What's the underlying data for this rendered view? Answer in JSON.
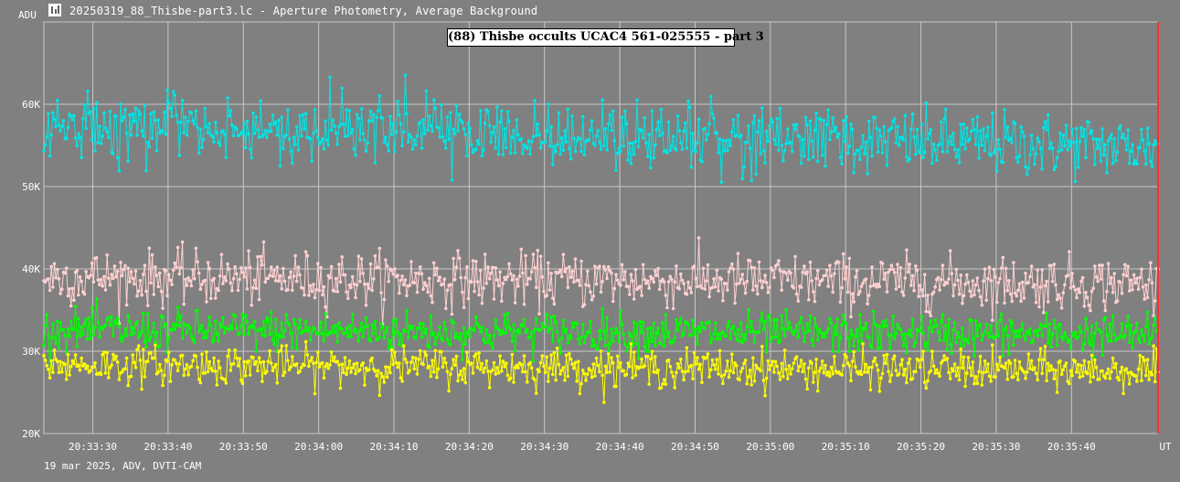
{
  "window": {
    "title": "20250319_88_Thisbe-part3.lc - Aperture Photometry, Average Background",
    "icon": "lightcurve-app-icon"
  },
  "footer": "19 mar 2025, ADV, DVTI-CAM",
  "chart_data": {
    "type": "line",
    "title": "(88) Thisbe occults UCAC4 561-025555 - part 3",
    "ylabel": "ADU",
    "xlabel": "UT",
    "ylim": [
      20000,
      70000
    ],
    "xlim": [
      "20:33:23.5",
      "20:35:51.5"
    ],
    "y_ticks": [
      {
        "value": 20000,
        "label": "20K"
      },
      {
        "value": 30000,
        "label": "30K"
      },
      {
        "value": 40000,
        "label": "40K"
      },
      {
        "value": 50000,
        "label": "50K"
      },
      {
        "value": 60000,
        "label": "60K"
      }
    ],
    "x_ticks": [
      {
        "value": "20:33:30",
        "label": "20:33:30"
      },
      {
        "value": "20:33:40",
        "label": "20:33:40"
      },
      {
        "value": "20:33:50",
        "label": "20:33:50"
      },
      {
        "value": "20:34:00",
        "label": "20:34:00"
      },
      {
        "value": "20:34:10",
        "label": "20:34:10"
      },
      {
        "value": "20:34:20",
        "label": "20:34:20"
      },
      {
        "value": "20:34:30",
        "label": "20:34:30"
      },
      {
        "value": "20:34:40",
        "label": "20:34:40"
      },
      {
        "value": "20:34:50",
        "label": "20:34:50"
      },
      {
        "value": "20:35:00",
        "label": "20:35:00"
      },
      {
        "value": "20:35:10",
        "label": "20:35:10"
      },
      {
        "value": "20:35:20",
        "label": "20:35:20"
      },
      {
        "value": "20:35:30",
        "label": "20:35:30"
      },
      {
        "value": "20:35:40",
        "label": "20:35:40"
      }
    ],
    "grid": true,
    "background": "#808080",
    "grid_color": "#c8c8c8",
    "marker_line_x": "20:35:51.5",
    "marker_line_color": "#ff3030",
    "sampling": {
      "start": "20:33:23.5",
      "end": "20:35:51.5",
      "interval_s": 0.2
    },
    "series": [
      {
        "color": "#00e5e5",
        "mean": 57600,
        "trend_end": 54800,
        "noise_sd": 2400
      },
      {
        "color": "#ffd0d0",
        "mean": 39000,
        "trend_end": 38200,
        "noise_sd": 2000
      },
      {
        "color": "#00ff00",
        "mean": 32600,
        "trend_end": 32000,
        "noise_sd": 1500
      },
      {
        "color": "#ffff00",
        "mean": 28400,
        "trend_end": 27600,
        "noise_sd": 1400
      }
    ]
  }
}
